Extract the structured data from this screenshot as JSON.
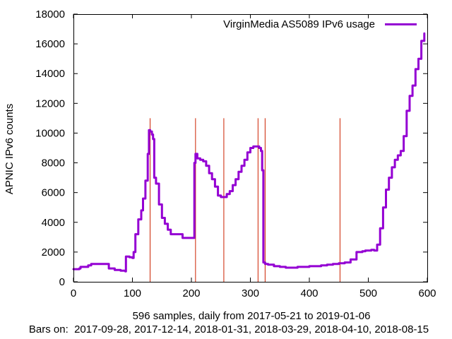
{
  "chart_data": {
    "type": "line",
    "legend": "top-right",
    "grid": false,
    "xlabel": "596 samples, daily from 2017-05-21 to 2019-01-06",
    "subcaption": "Bars on:  2017-09-28, 2017-12-14, 2018-01-31, 2018-03-29, 2018-04-10, 2018-08-15",
    "ylabel": "APNIC IPv6 counts",
    "xlim": [
      0,
      600
    ],
    "ylim": [
      0,
      18000
    ],
    "xticks": [
      0,
      100,
      200,
      300,
      400,
      500,
      600
    ],
    "yticks": [
      0,
      2000,
      4000,
      6000,
      8000,
      10000,
      12000,
      14000,
      16000,
      18000
    ],
    "bars": {
      "x": [
        130,
        207,
        255,
        313,
        325,
        452
      ],
      "height": 11000,
      "color": "#cc2200"
    },
    "series": [
      {
        "name": "VirginMedia AS5089 IPv6 usage",
        "color": "#9400d3",
        "x": [
          0,
          10,
          12,
          20,
          25,
          30,
          40,
          50,
          58,
          60,
          70,
          80,
          88,
          89,
          95,
          100,
          102,
          105,
          110,
          115,
          118,
          122,
          126,
          128,
          130,
          133,
          135,
          137,
          140,
          145,
          150,
          155,
          160,
          165,
          170,
          175,
          180,
          185,
          189,
          190,
          200,
          205,
          207,
          210,
          215,
          220,
          225,
          230,
          235,
          240,
          245,
          250,
          255,
          260,
          265,
          270,
          275,
          280,
          285,
          290,
          295,
          300,
          305,
          310,
          315,
          318,
          320,
          322,
          325,
          330,
          340,
          350,
          360,
          370,
          380,
          390,
          400,
          410,
          420,
          430,
          440,
          450,
          460,
          470,
          480,
          490,
          495,
          500,
          505,
          510,
          515,
          520,
          525,
          530,
          535,
          540,
          545,
          550,
          555,
          560,
          565,
          570,
          575,
          580,
          585,
          590,
          595
        ],
        "y": [
          850,
          900,
          1000,
          1000,
          1100,
          1200,
          1200,
          1200,
          1200,
          900,
          800,
          750,
          700,
          1700,
          1650,
          1600,
          2000,
          3200,
          4200,
          4800,
          5600,
          6800,
          8600,
          10200,
          10100,
          9900,
          9600,
          7000,
          6600,
          5200,
          4300,
          3900,
          3500,
          3200,
          3200,
          3200,
          3200,
          2950,
          2950,
          2950,
          2950,
          8000,
          8600,
          8300,
          8200,
          8100,
          7800,
          7300,
          6900,
          6400,
          5800,
          5700,
          5700,
          5900,
          6100,
          6500,
          6900,
          7400,
          7800,
          8200,
          8700,
          9000,
          9100,
          9100,
          9000,
          8800,
          7500,
          1300,
          1200,
          1150,
          1050,
          1000,
          950,
          950,
          1000,
          1000,
          1050,
          1050,
          1100,
          1150,
          1200,
          1250,
          1300,
          1500,
          2000,
          2050,
          2100,
          2100,
          2150,
          2100,
          2500,
          3600,
          5000,
          6200,
          7000,
          7700,
          8200,
          8500,
          8800,
          9800,
          11500,
          12500,
          13200,
          14300,
          15000,
          16200,
          16700
        ]
      }
    ]
  }
}
